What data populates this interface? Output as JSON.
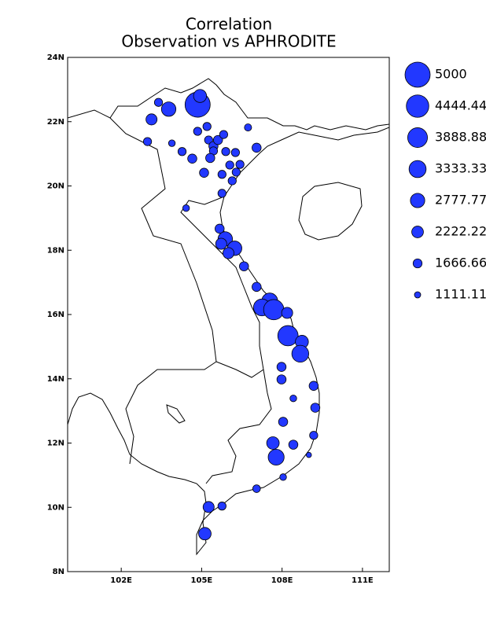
{
  "chart_data": {
    "type": "bubble-map",
    "title": "Correlation",
    "subtitle": "Observation vs APHRODITE",
    "xlim": [
      100,
      112
    ],
    "ylim": [
      8,
      24
    ],
    "xticks": [
      {
        "value": 102,
        "label": "102E"
      },
      {
        "value": 105,
        "label": "105E"
      },
      {
        "value": 108,
        "label": "108E"
      },
      {
        "value": 111,
        "label": "111E"
      }
    ],
    "yticks": [
      {
        "value": 8,
        "label": "8N"
      },
      {
        "value": 10,
        "label": "10N"
      },
      {
        "value": 12,
        "label": "12N"
      },
      {
        "value": 14,
        "label": "14N"
      },
      {
        "value": 16,
        "label": "16N"
      },
      {
        "value": 18,
        "label": "18N"
      },
      {
        "value": 20,
        "label": "20N"
      },
      {
        "value": 22,
        "label": "22N"
      },
      {
        "value": 24,
        "label": "24N"
      }
    ],
    "color": "#2238ff",
    "legend": {
      "values": [
        5000,
        4444.44,
        3888.88,
        3333.33,
        2777.77,
        2222.22,
        1666.66,
        1111.11
      ]
    },
    "x": [
      104.85,
      104.94,
      103.77,
      103.39,
      103.13,
      102.98,
      103.89,
      104.27,
      104.65,
      104.85,
      105.2,
      105.26,
      105.44,
      105.61,
      105.82,
      105.44,
      105.32,
      105.9,
      106.26,
      106.73,
      107.05,
      106.43,
      106.05,
      105.76,
      106.29,
      106.14,
      105.09,
      105.76,
      104.42,
      105.67,
      105.88,
      105.73,
      106.23,
      106.0,
      106.58,
      107.05,
      107.54,
      107.25,
      107.69,
      108.19,
      108.22,
      108.74,
      108.68,
      107.98,
      107.98,
      109.18,
      108.42,
      109.24,
      108.04,
      109.18,
      107.66,
      108.42,
      107.78,
      109.0,
      108.04,
      107.05,
      105.26,
      105.76,
      105.12
    ],
    "y": [
      22.53,
      22.8,
      22.39,
      22.6,
      22.07,
      21.38,
      21.33,
      21.07,
      20.85,
      21.7,
      21.85,
      21.43,
      21.24,
      21.43,
      21.6,
      21.09,
      20.87,
      21.07,
      21.04,
      21.82,
      21.19,
      20.67,
      20.65,
      20.36,
      20.43,
      20.16,
      20.41,
      19.77,
      19.31,
      18.67,
      18.35,
      18.2,
      18.06,
      17.91,
      17.5,
      16.86,
      16.42,
      16.22,
      16.15,
      16.05,
      15.34,
      15.15,
      14.78,
      14.37,
      13.98,
      13.78,
      13.39,
      13.1,
      12.66,
      12.24,
      12.0,
      11.95,
      11.56,
      11.63,
      10.94,
      10.58,
      10.01,
      10.04,
      9.18
    ],
    "sizes": [
      5000,
      2500,
      2800,
      1500,
      2100,
      1500,
      1200,
      1500,
      1700,
      1500,
      1500,
      1500,
      1700,
      1700,
      1500,
      1500,
      1700,
      1500,
      1500,
      1300,
      1700,
      1500,
      1500,
      1500,
      1500,
      1500,
      1700,
      1500,
      1200,
      1700,
      2800,
      2100,
      2800,
      2100,
      1700,
      1700,
      3100,
      3300,
      4000,
      2100,
      4000,
      2500,
      3300,
      1700,
      1700,
      1700,
      1200,
      1700,
      1700,
      1500,
      2400,
      1700,
      3100,
      900,
      1200,
      1400,
      2100,
      1500,
      2400
    ]
  }
}
